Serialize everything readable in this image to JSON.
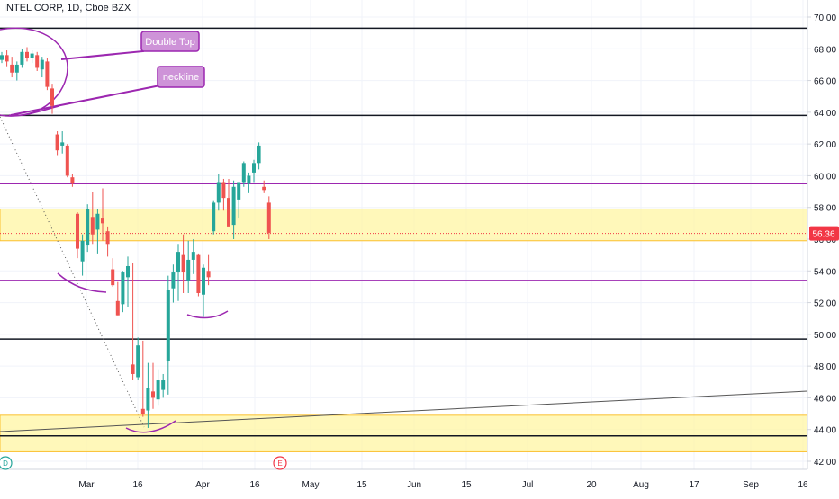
{
  "header": {
    "title": "INTEL CORP, 1D, Cboe BZX"
  },
  "chart_data": {
    "type": "candlestick",
    "title": "INTEL CORP, 1D, Cboe BZX",
    "price_axis": {
      "ylim": [
        41.2,
        70.8
      ],
      "ticks": [
        70,
        68,
        66,
        64,
        62,
        60,
        58,
        56,
        54,
        52,
        50,
        48,
        46,
        44,
        42
      ],
      "tick_labels": [
        "70.00",
        "68.00",
        "66.00",
        "64.00",
        "62.00",
        "60.00",
        "58.00",
        "56.00",
        "54.00",
        "52.00",
        "50.00",
        "48.00",
        "46.00",
        "44.00",
        "42.00"
      ],
      "last_price": 56.36,
      "last_price_label": "56.36"
    },
    "time_axis": {
      "labels": [
        "Mar",
        "16",
        "Apr",
        "16",
        "May",
        "15",
        "Jun",
        "15",
        "Jul",
        "20",
        "Aug",
        "17",
        "Sep",
        "16"
      ],
      "positions": [
        3,
        13,
        24,
        34,
        44,
        54,
        64,
        74,
        86,
        96,
        106,
        116,
        126,
        136
      ]
    },
    "candles": [
      [
        0,
        67.3,
        67.8,
        67.1,
        67.6
      ],
      [
        1,
        67.6,
        67.9,
        66.9,
        67.2
      ],
      [
        2,
        67.0,
        67.5,
        66.2,
        66.5
      ],
      [
        3,
        66.5,
        67.2,
        66.0,
        67.0
      ],
      [
        4,
        67.0,
        68.0,
        66.8,
        67.8
      ],
      [
        5,
        67.8,
        68.1,
        67.2,
        67.4
      ],
      [
        6,
        67.4,
        67.9,
        67.1,
        67.7
      ],
      [
        7,
        67.6,
        67.8,
        66.6,
        66.8
      ],
      [
        8,
        66.7,
        67.5,
        66.2,
        67.3
      ],
      [
        9,
        67.2,
        67.4,
        65.4,
        65.6
      ],
      [
        10,
        65.5,
        65.8,
        63.9,
        64.4
      ],
      [
        11,
        62.6,
        62.8,
        61.3,
        61.6
      ],
      [
        12,
        61.9,
        62.8,
        61.4,
        62.1
      ],
      [
        13,
        61.9,
        62.0,
        59.9,
        60.0
      ],
      [
        14,
        59.9,
        60.1,
        59.3,
        59.5
      ],
      [
        15,
        57.6,
        57.7,
        54.8,
        55.4
      ],
      [
        16,
        54.6,
        56.3,
        53.7,
        55.9
      ],
      [
        17,
        55.6,
        58.2,
        55.2,
        57.9
      ],
      [
        18,
        57.4,
        59.0,
        55.7,
        56.3
      ],
      [
        19,
        56.6,
        57.9,
        55.1,
        57.6
      ],
      [
        20,
        57.3,
        59.2,
        55.9,
        57.0
      ],
      [
        21,
        56.5,
        56.8,
        54.9,
        55.7
      ],
      [
        22,
        54.1,
        54.8,
        53.0,
        53.1
      ],
      [
        23,
        52.1,
        53.3,
        51.2,
        51.2
      ],
      [
        24,
        51.9,
        54.0,
        51.4,
        53.9
      ],
      [
        25,
        53.6,
        54.9,
        51.7,
        54.3
      ],
      [
        26,
        48.1,
        54.5,
        47.1,
        47.5
      ],
      [
        27,
        47.3,
        49.8,
        47.1,
        49.3
      ],
      [
        28,
        45.3,
        49.6,
        44.8,
        45.0
      ],
      [
        29,
        45.2,
        48.2,
        44.1,
        46.6
      ],
      [
        30,
        46.4,
        48.2,
        45.3,
        46.0
      ],
      [
        31,
        45.9,
        47.8,
        45.5,
        47.1
      ],
      [
        32,
        46.5,
        47.5,
        46.0,
        47.1
      ],
      [
        33,
        48.3,
        53.7,
        46.2,
        52.8
      ],
      [
        34,
        52.9,
        54.4,
        52.0,
        53.9
      ],
      [
        35,
        53.9,
        55.7,
        52.1,
        55.2
      ],
      [
        36,
        55.0,
        56.3,
        52.6,
        53.9
      ],
      [
        37,
        53.4,
        55.9,
        52.6,
        54.7
      ],
      [
        38,
        54.7,
        56.0,
        53.8,
        55.2
      ],
      [
        39,
        55.0,
        55.1,
        52.4,
        52.6
      ],
      [
        40,
        52.5,
        54.4,
        51.1,
        54.2
      ],
      [
        41,
        54.0,
        55.0,
        53.1,
        53.6
      ],
      [
        42,
        56.5,
        58.4,
        56.3,
        58.3
      ],
      [
        43,
        58.3,
        60.1,
        57.8,
        59.6
      ],
      [
        44,
        59.6,
        59.8,
        57.8,
        58.6
      ],
      [
        45,
        58.6,
        59.8,
        56.9,
        56.8
      ],
      [
        46,
        56.9,
        59.7,
        56.0,
        59.3
      ],
      [
        47,
        58.5,
        59.6,
        57.3,
        59.6
      ],
      [
        48,
        59.6,
        60.9,
        59.3,
        60.8
      ],
      [
        49,
        59.5,
        60.2,
        58.9,
        60.0
      ],
      [
        50,
        60.2,
        61.0,
        59.6,
        60.8
      ],
      [
        51,
        60.8,
        62.1,
        60.4,
        61.9
      ],
      [
        52,
        59.3,
        59.7,
        58.9,
        59.1
      ],
      [
        53,
        58.3,
        58.7,
        56.0,
        56.4
      ]
    ],
    "horizontal_lines": [
      {
        "price": 69.3,
        "color": "#131722"
      },
      {
        "price": 63.8,
        "color": "#131722"
      },
      {
        "price": 59.5,
        "color": "#9c27b0"
      },
      {
        "price": 53.4,
        "color": "#9c27b0"
      },
      {
        "price": 49.7,
        "color": "#131722"
      },
      {
        "price": 43.6,
        "color": "#131722"
      },
      {
        "price": 56.36,
        "color": "#f23645"
      }
    ],
    "zones": [
      {
        "from": 55.9,
        "to": 57.9,
        "color": "#fff59d"
      },
      {
        "from": 42.6,
        "to": 44.9,
        "color": "#fff59d"
      }
    ],
    "annotations": [
      {
        "text": "Double Top",
        "color": "#ce93d8",
        "border": "#9c27b0"
      },
      {
        "text": "neckline",
        "color": "#ce93d8",
        "border": "#9c27b0"
      }
    ],
    "markers": [
      {
        "text": "D",
        "color": "#26a69a"
      },
      {
        "text": "E",
        "color": "#f23645"
      }
    ],
    "colors": {
      "up": "#26a69a",
      "down": "#ef5350",
      "purple": "#9c27b0",
      "grid": "#f0f3fa",
      "axis_text": "#131722"
    }
  }
}
